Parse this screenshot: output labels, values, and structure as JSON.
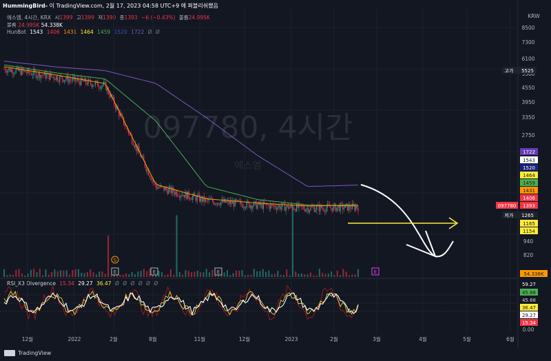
{
  "header": {
    "publisher": "HummingBird-",
    "rest": " 이 TradingView.com, 2월 17, 2023 04:58 UTC+9 에 퍼블리쉬했음"
  },
  "legend": {
    "symbol": "에스엠, 4시간, KRX",
    "o_label": "시",
    "o": "1399",
    "h_label": "고",
    "h": "1399",
    "l_label": "저",
    "l": "1390",
    "c_label": "종",
    "c": "1393",
    "chg": "−6 (−0.43%)",
    "vol_label": "볼륨",
    "vol": "24.995K",
    "vol2_label": "볼륨",
    "vol2a": "24.995K",
    "vol2b": "54.338K",
    "hunbot_label": "HunBot",
    "hunbot_vals": [
      "1543",
      "1406",
      "1431",
      "1464",
      "1459",
      "1520",
      "1722",
      "Ø",
      "Ø"
    ],
    "rsi_label": "RSI_X3 Divergence",
    "rsi_vals": [
      "15.34",
      "29.27",
      "36.47",
      "Ø",
      "Ø",
      "Ø",
      "Ø",
      "Ø",
      "Ø"
    ]
  },
  "watermark": {
    "main": "097780, 4시간",
    "sub": "에스엠"
  },
  "price_axis": {
    "currency": "KRW",
    "ticks": [
      "8500",
      "7300",
      "6100",
      "5500",
      "4550",
      "3950",
      "3350",
      "2750",
      "940",
      "820",
      "0.00"
    ]
  },
  "price_tags": [
    {
      "label": "1722",
      "bg": "#673ab7",
      "fg": "#ffffff"
    },
    {
      "label": "1543",
      "bg": "#ffffff",
      "fg": "#131722"
    },
    {
      "label": "1520",
      "bg": "#1a237e",
      "fg": "#ffffff"
    },
    {
      "label": "1464",
      "bg": "#ffeb3b",
      "fg": "#131722"
    },
    {
      "label": "1459",
      "bg": "#4caf50",
      "fg": "#131722"
    },
    {
      "label": "1431",
      "bg": "#ff9800",
      "fg": "#131722"
    },
    {
      "label": "1406",
      "bg": "#f23645",
      "fg": "#ffffff"
    },
    {
      "label": "1393",
      "bg": "#f23645",
      "fg": "#ffffff"
    },
    {
      "label": "1265",
      "bg": "#1e222d",
      "fg": "#ffffff"
    },
    {
      "label": "1165",
      "bg": "#ffeb3b",
      "fg": "#131722"
    },
    {
      "label": "1154",
      "bg": "#ffeb3b",
      "fg": "#131722"
    }
  ],
  "high_tag": {
    "label": "고가",
    "value": "5525"
  },
  "low_tag": {
    "label": "저가",
    "value": "1265"
  },
  "symbol_tag": "097780",
  "volume_tag": "54.338K",
  "rsi_tags": [
    {
      "label": "59.27",
      "bg": "#131722",
      "fg": "#ffffff"
    },
    {
      "label": "45.68",
      "bg": "#4caf50",
      "fg": "#131722"
    },
    {
      "label": "45.68",
      "bg": "#131722",
      "fg": "#d1d4dc"
    },
    {
      "label": "36.47",
      "bg": "#ffeb3b",
      "fg": "#131722"
    },
    {
      "label": "29.27",
      "bg": "#ffffff",
      "fg": "#131722"
    },
    {
      "label": "15.34",
      "bg": "#f23645",
      "fg": "#ffffff"
    }
  ],
  "x_axis": [
    "12월",
    "2022",
    "2월",
    "8월",
    "11월",
    "12월",
    "2023",
    "2월",
    "3월",
    "4월",
    "5월",
    "6월"
  ],
  "event_markers": [
    "S",
    "E",
    "E",
    "E",
    "E"
  ],
  "footer": {
    "brand": "TradingView"
  },
  "chart_data": {
    "type": "line",
    "symbol": "097780",
    "x": [
      "12월",
      "2022",
      "2월",
      "8월",
      "11월",
      "12월",
      "2023",
      "2월"
    ],
    "series": [
      {
        "values": [
          5300,
          4900,
          4500,
          1700,
          1480,
          1420,
          1380,
          1393
        ]
      },
      {
        "values": [
          5500,
          5100,
          4800,
          3200,
          1700,
          1500,
          1420,
          1406
        ]
      },
      {
        "values": [
          5700,
          5400,
          5200,
          4600,
          3300,
          2300,
          1700,
          1722
        ]
      }
    ],
    "ylim": [
      0,
      8500
    ],
    "log_scale": true,
    "grid": true
  },
  "colors": {
    "bg": "#131722",
    "up": "#26a69a",
    "down": "#f23645",
    "accent_arrow": "#ffffff",
    "target_arrow": "#ffeb3b",
    "e_marker": "#e040fb"
  }
}
